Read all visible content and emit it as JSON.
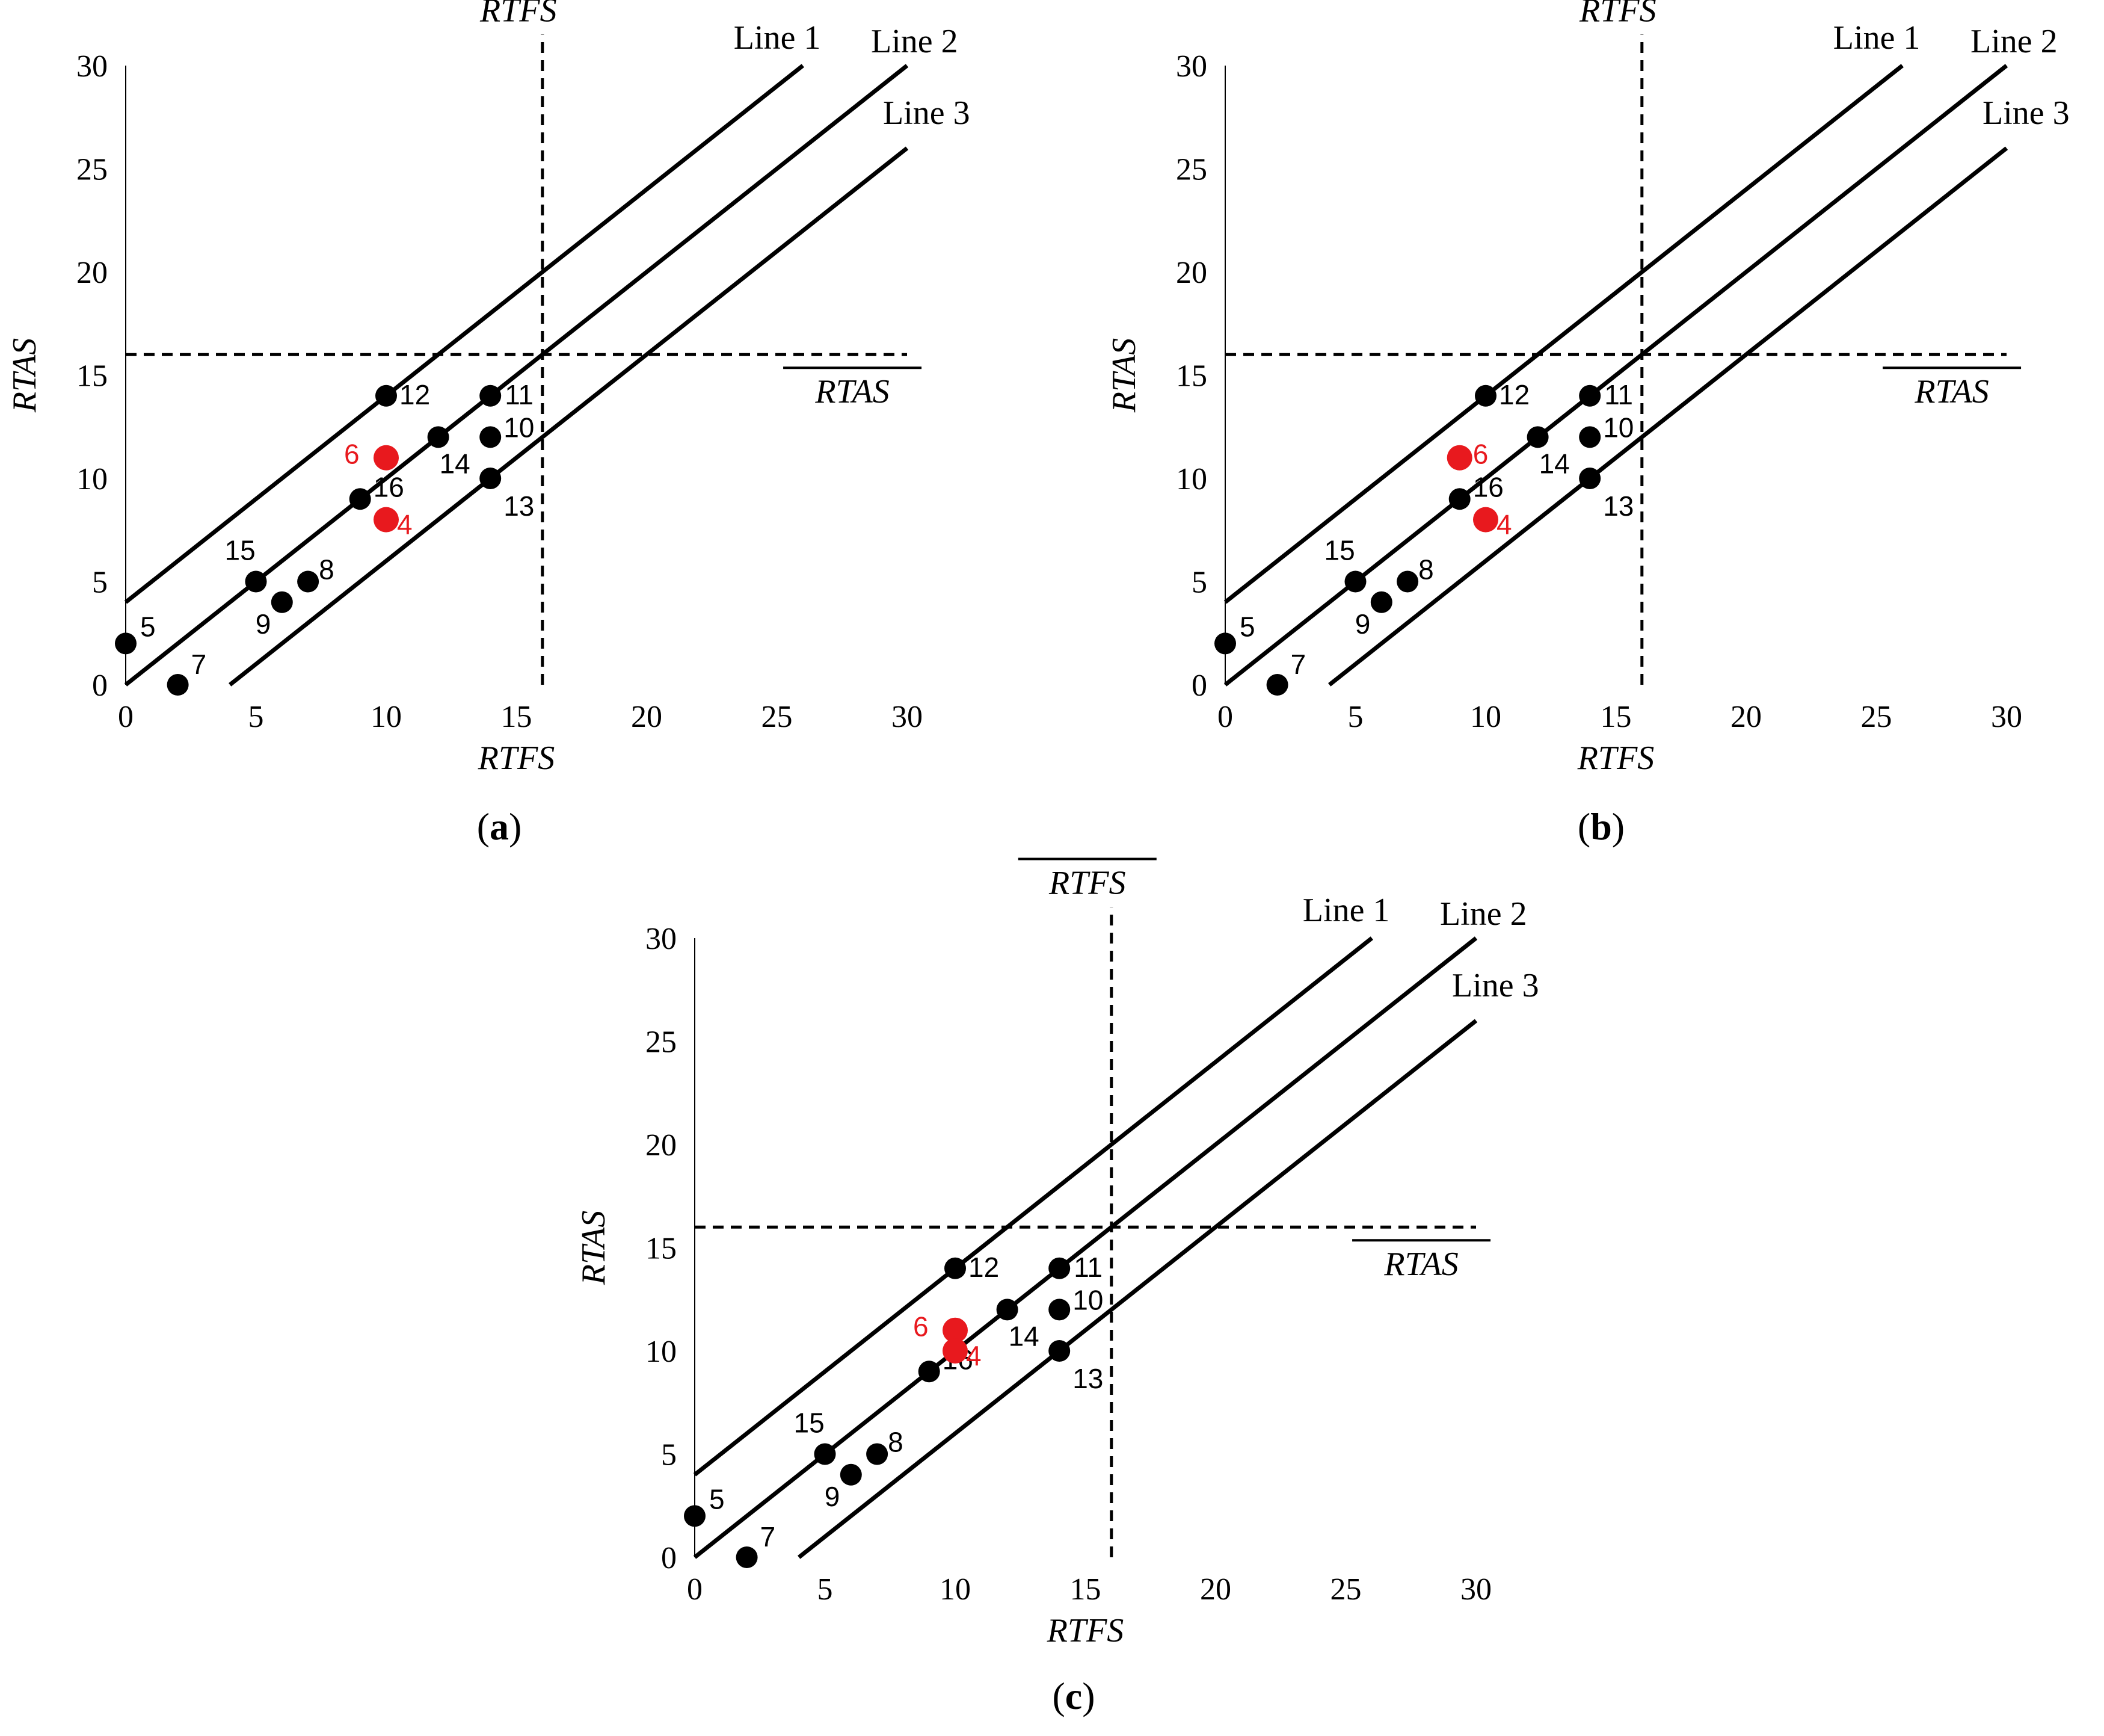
{
  "chart_data": [
    {
      "type": "scatter",
      "caption": "a",
      "xlabel": "RTFS",
      "ylabel": "RTAS",
      "xlim": [
        0,
        30
      ],
      "ylim": [
        0,
        30
      ],
      "xticks": [
        0,
        5,
        10,
        15,
        20,
        25,
        30
      ],
      "yticks": [
        0,
        5,
        10,
        15,
        20,
        25,
        30
      ],
      "threshold_x": {
        "value": 16,
        "label": "RTFS"
      },
      "threshold_y": {
        "value": 16,
        "label": "RTAS"
      },
      "lines": [
        {
          "name": "Line 1",
          "intercept": 4,
          "x_end": 26
        },
        {
          "name": "Line 2",
          "intercept": 0,
          "x_end": 30
        },
        {
          "name": "Line 3",
          "intercept": -4,
          "x_end": 30
        }
      ],
      "points": [
        {
          "label": "5",
          "x": 0,
          "y": 2,
          "color": "#000000"
        },
        {
          "label": "7",
          "x": 2,
          "y": 0,
          "color": "#000000"
        },
        {
          "label": "15",
          "x": 5,
          "y": 5,
          "color": "#000000"
        },
        {
          "label": "9",
          "x": 6,
          "y": 4,
          "color": "#000000"
        },
        {
          "label": "8",
          "x": 7,
          "y": 5,
          "color": "#000000"
        },
        {
          "label": "16",
          "x": 9,
          "y": 9,
          "color": "#000000"
        },
        {
          "label": "12",
          "x": 10,
          "y": 14,
          "color": "#000000"
        },
        {
          "label": "6",
          "x": 10,
          "y": 11,
          "color": "#e8191e"
        },
        {
          "label": "4",
          "x": 10,
          "y": 8,
          "color": "#e8191e"
        },
        {
          "label": "14",
          "x": 12,
          "y": 12,
          "color": "#000000"
        },
        {
          "label": "11",
          "x": 14,
          "y": 14,
          "color": "#000000"
        },
        {
          "label": "10",
          "x": 14,
          "y": 12,
          "color": "#000000"
        },
        {
          "label": "13",
          "x": 14,
          "y": 10,
          "color": "#000000"
        }
      ]
    },
    {
      "type": "scatter",
      "caption": "b",
      "xlabel": "RTFS",
      "ylabel": "RTAS",
      "xlim": [
        0,
        30
      ],
      "ylim": [
        0,
        30
      ],
      "xticks": [
        0,
        5,
        10,
        15,
        20,
        25,
        30
      ],
      "yticks": [
        0,
        5,
        10,
        15,
        20,
        25,
        30
      ],
      "threshold_x": {
        "value": 16,
        "label": "RTFS"
      },
      "threshold_y": {
        "value": 16,
        "label": "RTAS"
      },
      "lines": [
        {
          "name": "Line 1",
          "intercept": 4,
          "x_end": 26
        },
        {
          "name": "Line 2",
          "intercept": 0,
          "x_end": 30
        },
        {
          "name": "Line 3",
          "intercept": -4,
          "x_end": 30
        }
      ],
      "points": [
        {
          "label": "5",
          "x": 0,
          "y": 2,
          "color": "#000000"
        },
        {
          "label": "7",
          "x": 2,
          "y": 0,
          "color": "#000000"
        },
        {
          "label": "15",
          "x": 5,
          "y": 5,
          "color": "#000000"
        },
        {
          "label": "9",
          "x": 6,
          "y": 4,
          "color": "#000000"
        },
        {
          "label": "8",
          "x": 7,
          "y": 5,
          "color": "#000000"
        },
        {
          "label": "16",
          "x": 9,
          "y": 9,
          "color": "#000000"
        },
        {
          "label": "6",
          "x": 9,
          "y": 11,
          "color": "#e8191e"
        },
        {
          "label": "12",
          "x": 10,
          "y": 14,
          "color": "#000000"
        },
        {
          "label": "4",
          "x": 10,
          "y": 8,
          "color": "#e8191e"
        },
        {
          "label": "14",
          "x": 12,
          "y": 12,
          "color": "#000000"
        },
        {
          "label": "11",
          "x": 14,
          "y": 14,
          "color": "#000000"
        },
        {
          "label": "10",
          "x": 14,
          "y": 12,
          "color": "#000000"
        },
        {
          "label": "13",
          "x": 14,
          "y": 10,
          "color": "#000000"
        }
      ]
    },
    {
      "type": "scatter",
      "caption": "c",
      "xlabel": "RTFS",
      "ylabel": "RTAS",
      "xlim": [
        0,
        30
      ],
      "ylim": [
        0,
        30
      ],
      "xticks": [
        0,
        5,
        10,
        15,
        20,
        25,
        30
      ],
      "yticks": [
        0,
        5,
        10,
        15,
        20,
        25,
        30
      ],
      "threshold_x": {
        "value": 16,
        "label": "RTFS"
      },
      "threshold_y": {
        "value": 16,
        "label": "RTAS"
      },
      "lines": [
        {
          "name": "Line 1",
          "intercept": 4,
          "x_end": 26
        },
        {
          "name": "Line 2",
          "intercept": 0,
          "x_end": 30
        },
        {
          "name": "Line 3",
          "intercept": -4,
          "x_end": 30
        }
      ],
      "points": [
        {
          "label": "5",
          "x": 0,
          "y": 2,
          "color": "#000000"
        },
        {
          "label": "7",
          "x": 2,
          "y": 0,
          "color": "#000000"
        },
        {
          "label": "15",
          "x": 5,
          "y": 5,
          "color": "#000000"
        },
        {
          "label": "9",
          "x": 6,
          "y": 4,
          "color": "#000000"
        },
        {
          "label": "8",
          "x": 7,
          "y": 5,
          "color": "#000000"
        },
        {
          "label": "16",
          "x": 9,
          "y": 9,
          "color": "#000000"
        },
        {
          "label": "12",
          "x": 10,
          "y": 14,
          "color": "#000000"
        },
        {
          "label": "6",
          "x": 10,
          "y": 11,
          "color": "#e8191e"
        },
        {
          "label": "4",
          "x": 10,
          "y": 10,
          "color": "#e8191e"
        },
        {
          "label": "14",
          "x": 12,
          "y": 12,
          "color": "#000000"
        },
        {
          "label": "11",
          "x": 14,
          "y": 14,
          "color": "#000000"
        },
        {
          "label": "10",
          "x": 14,
          "y": 12,
          "color": "#000000"
        },
        {
          "label": "13",
          "x": 14,
          "y": 10,
          "color": "#000000"
        }
      ]
    }
  ]
}
